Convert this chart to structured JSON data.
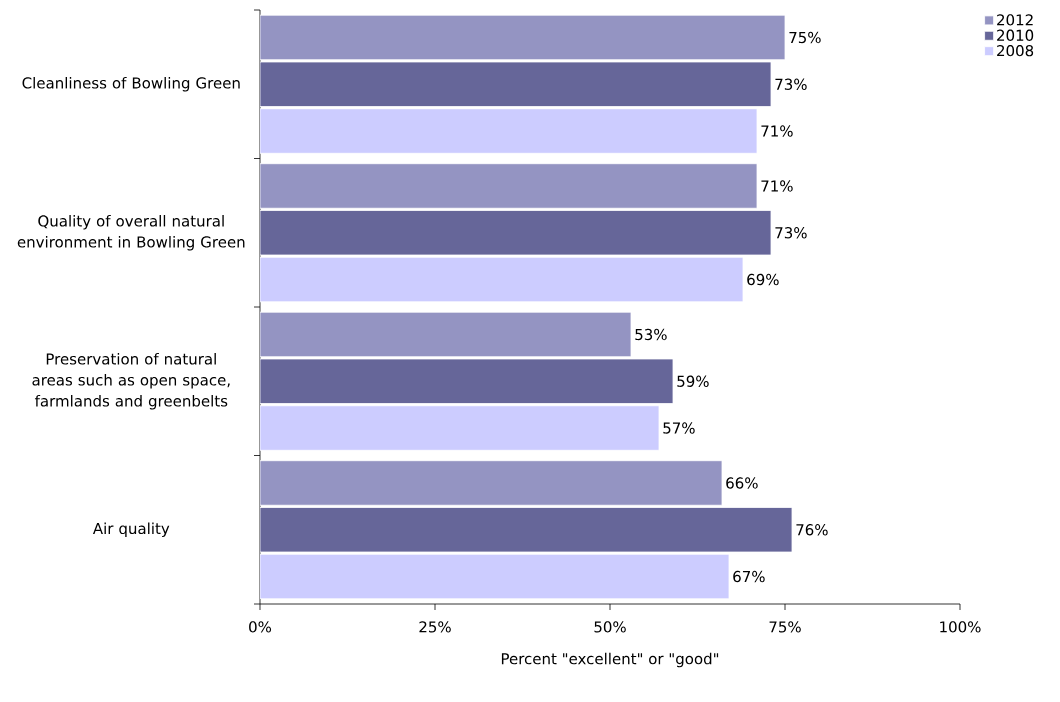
{
  "chart_data": {
    "type": "bar",
    "orientation": "horizontal",
    "xlabel": "Percent \"excellent\" or \"good\"",
    "categories": [
      "Cleanliness of Bowling Green",
      "Quality of overall natural environment in Bowling Green",
      "Preservation of natural areas such as open space, farmlands and greenbelts",
      "Air quality"
    ],
    "series": [
      {
        "name": "2012",
        "color": "#9494c2",
        "values": [
          75,
          71,
          53,
          66
        ],
        "value_labels": [
          "75%",
          "71%",
          "53%",
          "66%"
        ]
      },
      {
        "name": "2010",
        "color": "#666699",
        "values": [
          73,
          73,
          59,
          76
        ],
        "value_labels": [
          "73%",
          "73%",
          "59%",
          "76%"
        ]
      },
      {
        "name": "2008",
        "color": "#ccccff",
        "values": [
          71,
          69,
          57,
          67
        ],
        "value_labels": [
          "71%",
          "69%",
          "57%",
          "67%"
        ]
      }
    ],
    "xlim": [
      0,
      100
    ],
    "xticks": [
      {
        "value": 0,
        "label": "0%"
      },
      {
        "value": 25,
        "label": "25%"
      },
      {
        "value": 50,
        "label": "50%"
      },
      {
        "value": 75,
        "label": "75%"
      },
      {
        "value": 100,
        "label": "100%"
      }
    ],
    "legend": "top right",
    "grid": false
  }
}
